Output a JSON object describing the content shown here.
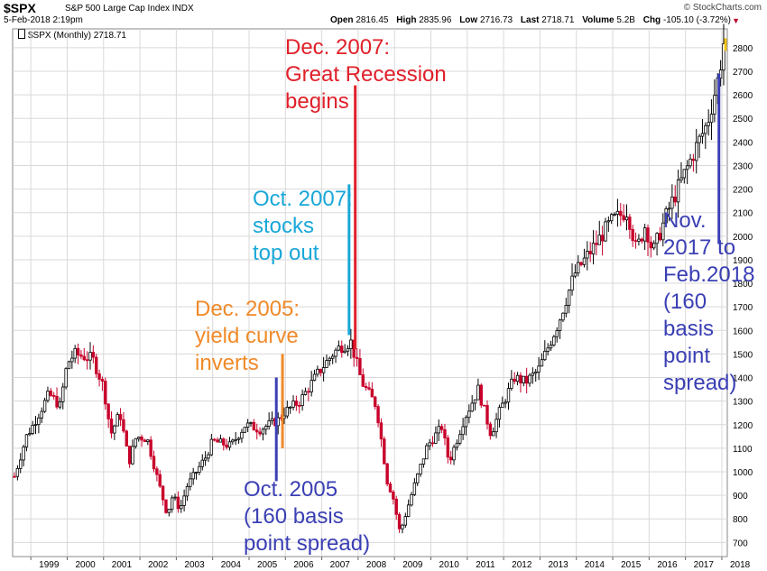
{
  "header": {
    "symbol": "$SPX",
    "description": "S&P 500 Large Cap Index INDX",
    "datetime": "5-Feb-2018 2:19pm",
    "brand": "© StockCharts.com",
    "open_label": "Open",
    "open": "2816.45",
    "high_label": "High",
    "high": "2835.96",
    "low_label": "Low",
    "low": "2716.73",
    "last_label": "Last",
    "last": "2718.71",
    "volume_label": "Volume",
    "volume": "5.2B",
    "chg_label": "Chg",
    "chg": "-105.10 (-3.72%)",
    "chg_arrow": "▼"
  },
  "legend": {
    "icon": "candle-legend-icon",
    "text": "$SPX (Monthly) 2718.71"
  },
  "colors": {
    "up": "#000000",
    "down": "#c8002a",
    "grid": "#d9d9d9",
    "red": "#e0202a",
    "cyan": "#1aa7d8",
    "orange": "#f08a2a",
    "blue": "#3a3fb4"
  },
  "chart_data": {
    "type": "candlestick",
    "period": "Monthly",
    "x_ticks": [
      "1999",
      "2000",
      "2001",
      "2002",
      "2003",
      "2004",
      "2005",
      "2006",
      "2007",
      "2008",
      "2009",
      "2010",
      "2011",
      "2012",
      "2013",
      "2014",
      "2015",
      "2016",
      "2017",
      "2018"
    ],
    "y_ticks": [
      700,
      800,
      900,
      1000,
      1100,
      1200,
      1300,
      1400,
      1500,
      1600,
      1700,
      1800,
      1900,
      2000,
      2100,
      2200,
      2300,
      2400,
      2500,
      2600,
      2700,
      2800
    ],
    "xlim": [
      1998.5,
      2018.15
    ],
    "ylim": [
      640,
      2880
    ],
    "close_path": [
      [
        1998.55,
        980
      ],
      [
        1998.9,
        1160
      ],
      [
        1999.0,
        1180
      ],
      [
        1999.5,
        1330
      ],
      [
        1999.8,
        1280
      ],
      [
        2000.0,
        1460
      ],
      [
        2000.2,
        1500
      ],
      [
        2000.7,
        1480
      ],
      [
        2001.0,
        1360
      ],
      [
        2001.2,
        1160
      ],
      [
        2001.45,
        1250
      ],
      [
        2001.7,
        1040
      ],
      [
        2001.9,
        1150
      ],
      [
        2002.2,
        1140
      ],
      [
        2002.5,
        960
      ],
      [
        2002.75,
        820
      ],
      [
        2002.9,
        900
      ],
      [
        2003.1,
        840
      ],
      [
        2003.3,
        940
      ],
      [
        2003.8,
        1060
      ],
      [
        2004.0,
        1130
      ],
      [
        2004.5,
        1110
      ],
      [
        2004.9,
        1200
      ],
      [
        2005.3,
        1180
      ],
      [
        2005.8,
        1220
      ],
      [
        2005.95,
        1250
      ],
      [
        2006.4,
        1300
      ],
      [
        2006.9,
        1420
      ],
      [
        2007.3,
        1500
      ],
      [
        2007.5,
        1530
      ],
      [
        2007.8,
        1550
      ],
      [
        2008.1,
        1380
      ],
      [
        2008.5,
        1280
      ],
      [
        2008.8,
        960
      ],
      [
        2008.95,
        900
      ],
      [
        2009.15,
        740
      ],
      [
        2009.5,
        920
      ],
      [
        2009.9,
        1110
      ],
      [
        2010.3,
        1190
      ],
      [
        2010.5,
        1040
      ],
      [
        2010.9,
        1220
      ],
      [
        2011.3,
        1350
      ],
      [
        2011.65,
        1160
      ],
      [
        2011.9,
        1260
      ],
      [
        2012.3,
        1400
      ],
      [
        2012.6,
        1380
      ],
      [
        2012.95,
        1430
      ],
      [
        2013.5,
        1630
      ],
      [
        2013.95,
        1840
      ],
      [
        2014.5,
        1960
      ],
      [
        2014.95,
        2060
      ],
      [
        2015.4,
        2110
      ],
      [
        2015.65,
        1940
      ],
      [
        2015.9,
        2050
      ],
      [
        2016.1,
        1930
      ],
      [
        2016.5,
        2100
      ],
      [
        2016.9,
        2240
      ],
      [
        2017.3,
        2380
      ],
      [
        2017.6,
        2480
      ],
      [
        2017.9,
        2670
      ],
      [
        2018.05,
        2820
      ],
      [
        2018.1,
        2718
      ]
    ],
    "annotations": [
      {
        "id": "dec2007",
        "text": "Dec. 2007:\nGreat Recession\nbegins",
        "color": "red",
        "date": 2007.92,
        "line_from": 1520,
        "line_to": 2640
      },
      {
        "id": "oct2007",
        "text": "Oct. 2007:\nstocks\ntop out",
        "color": "cyan",
        "date": 2007.75,
        "line_from": 1580,
        "line_to": 2220
      },
      {
        "id": "dec2005",
        "text": "Dec. 2005:\nyield curve\ninverts",
        "color": "orange",
        "date": 2005.92,
        "line_from": 1100,
        "line_to": 1500
      },
      {
        "id": "oct2005",
        "text": "Oct. 2005\n(160 basis\npoint spread)",
        "color": "blue",
        "date": 2005.75,
        "line_from": 960,
        "line_to": 1400
      },
      {
        "id": "nov2017",
        "text": "Nov.\n2017 to\nFeb.2018\n(160\nbasis\npoint\nspread)",
        "color": "blue",
        "date": 2017.92,
        "line_from": 1970,
        "line_to": 2690
      }
    ]
  }
}
